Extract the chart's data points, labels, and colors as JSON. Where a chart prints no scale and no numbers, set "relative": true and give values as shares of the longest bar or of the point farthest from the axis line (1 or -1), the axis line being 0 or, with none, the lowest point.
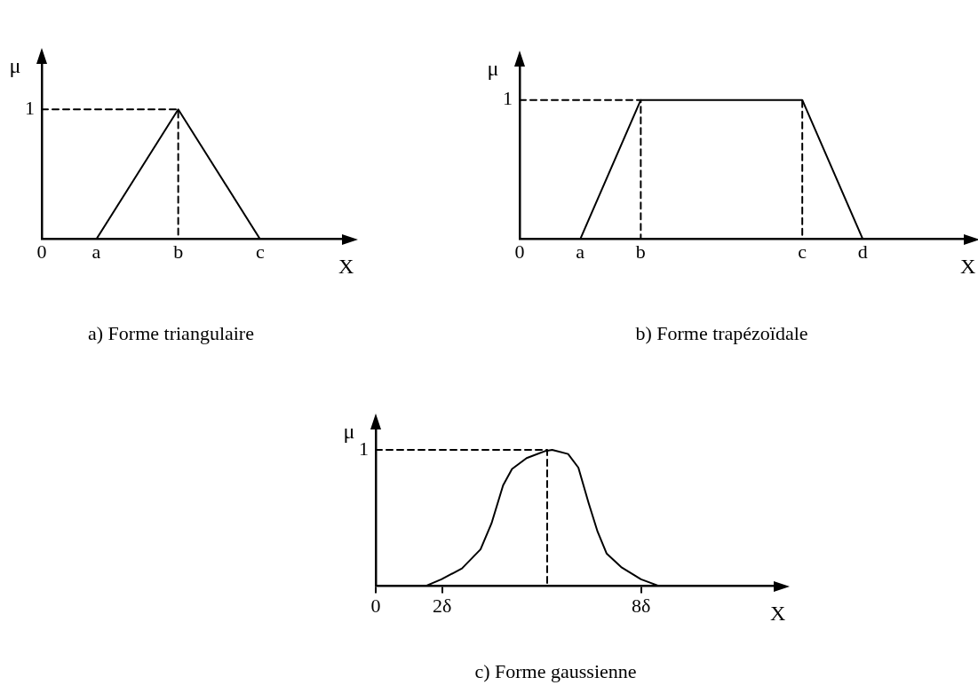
{
  "chart_data": [
    {
      "type": "line",
      "title": "a) Forme triangulaire",
      "xlabel": "X",
      "ylabel": "μ",
      "relative": true,
      "annotations": [
        "1"
      ],
      "grid": false,
      "categories": [
        "0",
        null,
        "a",
        null,
        null,
        "b",
        null,
        null,
        "c",
        null,
        null,
        null
      ],
      "series": [
        {
          "color": "#000000",
          "x": [
            "a",
            "b",
            "c"
          ],
          "values": [
            0,
            1,
            0
          ]
        },
        {
          "color": "#000000",
          "line_style": "dashed",
          "x": [
            "0",
            "b",
            "b"
          ],
          "values": [
            1,
            1,
            0
          ]
        }
      ]
    },
    {
      "type": "line",
      "title": "b) Forme trapézoïdale",
      "xlabel": "X",
      "ylabel": "μ",
      "relative": true,
      "annotations": [
        "1"
      ],
      "grid": false,
      "categories": [
        "0",
        null,
        null,
        "a",
        null,
        null,
        "b",
        null,
        null,
        null,
        null,
        null,
        null,
        null,
        "c",
        null,
        null,
        "d",
        null,
        null,
        null,
        null,
        null
      ],
      "series": [
        {
          "color": "#000000",
          "x": [
            "a",
            "b",
            "c",
            "d"
          ],
          "values": [
            0,
            1,
            1,
            0
          ]
        },
        {
          "color": "#000000",
          "line_style": "dashed",
          "x": [
            "0",
            "b",
            "b",
            "c",
            "c"
          ],
          "values": [
            1,
            1,
            0,
            0,
            1
          ]
        }
      ]
    },
    {
      "type": "line",
      "title": "c) Forme gaussienne",
      "xlabel": "X",
      "ylabel": "μ",
      "relative": true,
      "annotations": [
        "1"
      ],
      "grid": false,
      "xlim": [
        0,
        12
      ],
      "xticks": [
        0,
        {
          "value": 2,
          "label": "2δ"
        },
        {
          "value": 8,
          "label": "8δ"
        }
      ],
      "series": [
        {
          "color": "#000000",
          "x": [
            1.49,
            1.98,
            2.6,
            3.16,
            3.49,
            3.84,
            4.11,
            4.55,
            5.09,
            5.32,
            5.8,
            6.11,
            6.42,
            6.69,
            6.96,
            7.4,
            8.0,
            8.56
          ],
          "values": [
            0,
            0.05,
            0.13,
            0.27,
            0.46,
            0.74,
            0.86,
            0.94,
            0.99,
            1,
            0.97,
            0.87,
            0.61,
            0.4,
            0.24,
            0.14,
            0.05,
            0
          ]
        },
        {
          "color": "#000000",
          "line_style": "dashed",
          "x": [
            0,
            5.17,
            5.17
          ],
          "values": [
            1,
            1,
            0
          ]
        }
      ]
    }
  ]
}
